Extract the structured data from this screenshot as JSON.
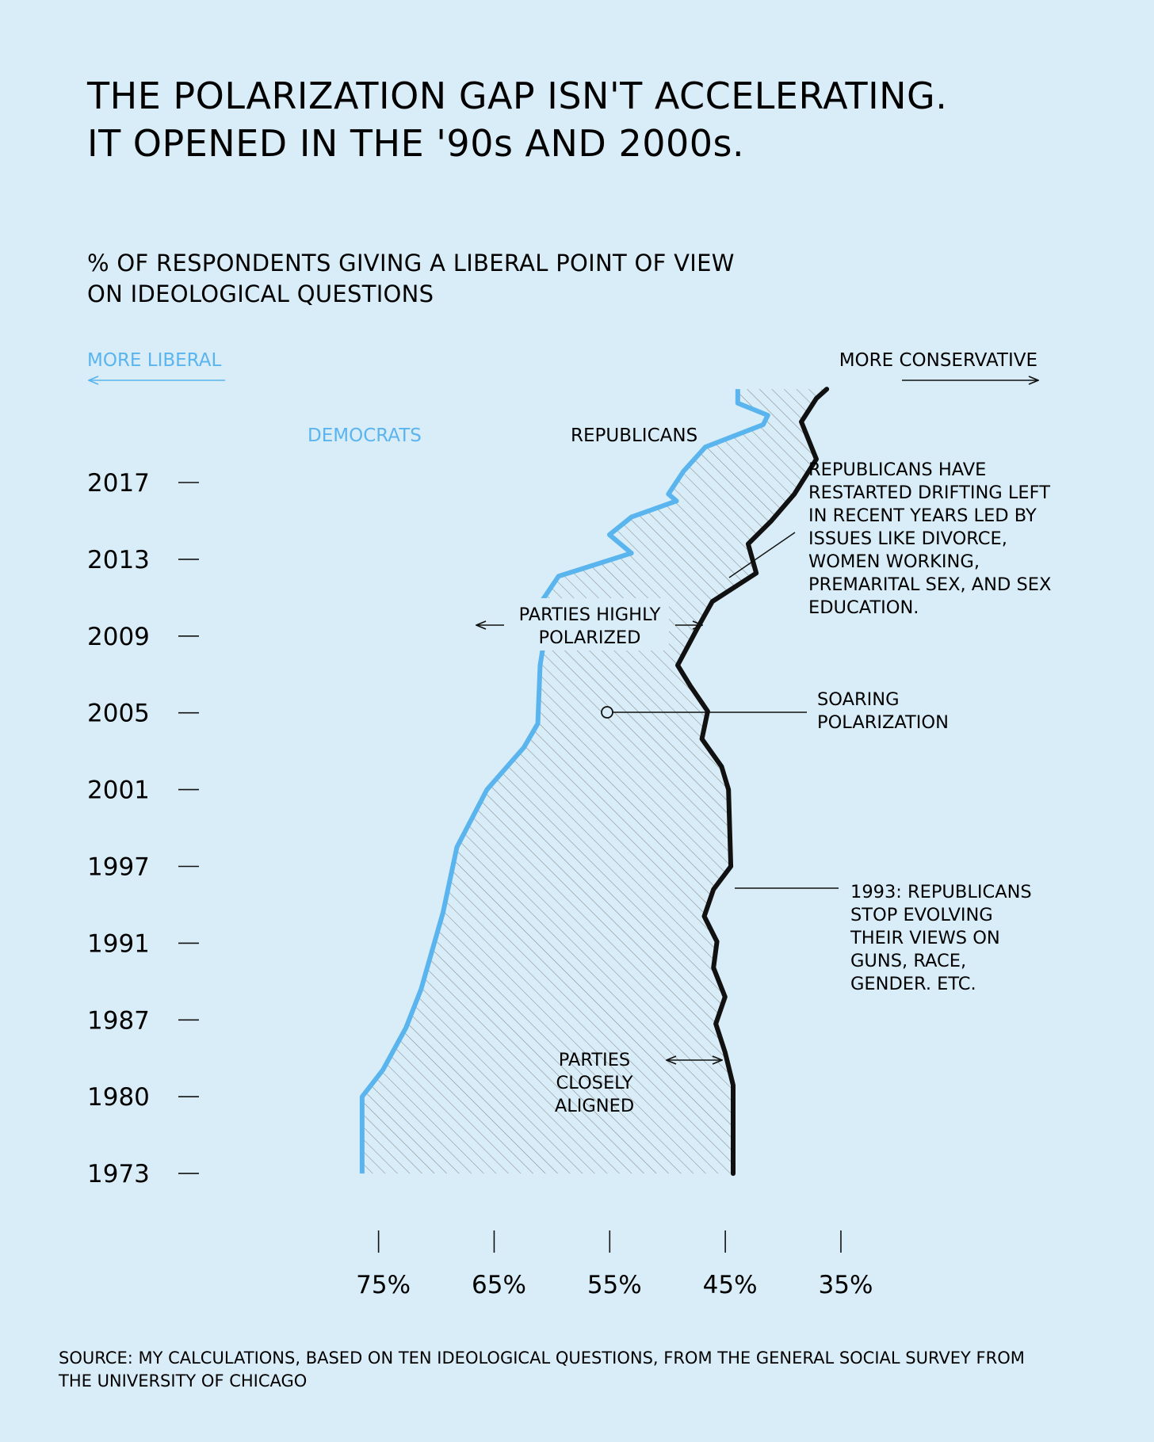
{
  "header": {
    "title_lines": [
      "THE POLARIZATION GAP ISN'T ACCELERATING.",
      "IT OPENED IN THE '90s AND 2000s."
    ],
    "subtitle_lines": [
      "% OF RESPONDENTS GIVING A LIBERAL POINT OF VIEW",
      "ON IDEOLOGICAL QUESTIONS"
    ]
  },
  "direction": {
    "left_label": "MORE LIBERAL",
    "right_label": "MORE CONSERVATIVE"
  },
  "annotations": {
    "republicans_drift": [
      "REPUBLICANS HAVE",
      "RESTARTED DRIFTING LEFT",
      "IN RECENT YEARS LED BY",
      "ISSUES LIKE DIVORCE,",
      "WOMEN WORKING,",
      "PREMARITAL SEX, AND SEX",
      "EDUCATION."
    ],
    "highly_polarized": [
      "PARTIES HIGHLY",
      "POLARIZED"
    ],
    "soaring": [
      "SOARING",
      "POLARIZATION"
    ],
    "republicans_1993": [
      "1993: REPUBLICANS",
      "STOP EVOLVING",
      "THEIR VIEWS ON",
      "GUNS, RACE,",
      "GENDER. ETC."
    ],
    "closely_aligned": [
      "PARTIES",
      "CLOSELY",
      "ALIGNED"
    ]
  },
  "source_lines": [
    "SOURCE: MY CALCULATIONS, BASED ON TEN IDEOLOGICAL QUESTIONS, FROM THE GENERAL SOCIAL SURVEY FROM",
    "THE UNIVERSITY OF CHICAGO"
  ],
  "colors": {
    "background": "#d9edf8",
    "democrats": "#5ab4ee",
    "republicans": "#111111",
    "hatch": "#8a8a8a"
  },
  "chart_data": {
    "type": "line",
    "orientation": "vertical-time",
    "y_tick_labels": [
      "2017",
      "2013",
      "2009",
      "2005",
      "2001",
      "1997",
      "1991",
      "1987",
      "1980",
      "1973"
    ],
    "x_tick_values": [
      75,
      65,
      55,
      45,
      35
    ],
    "x_tick_labels": [
      "75%",
      "65%",
      "55%",
      "45%",
      "35%"
    ],
    "xlim": [
      79.5,
      31.5
    ],
    "x_reversed": true,
    "series": [
      {
        "name": "DEMOCRATS",
        "color": "#5ab4ee",
        "points": [
          {
            "y": 10,
            "x": 43.1
          },
          {
            "y": 9.85,
            "x": 43.1
          },
          {
            "y": 9.72,
            "x": 40.5
          },
          {
            "y": 9.62,
            "x": 40.9
          },
          {
            "y": 9.38,
            "x": 45.9
          },
          {
            "y": 9.12,
            "x": 47.8
          },
          {
            "y": 8.85,
            "x": 49.1
          },
          {
            "y": 8.76,
            "x": 48.4
          },
          {
            "y": 8.55,
            "x": 52.3
          },
          {
            "y": 8.32,
            "x": 54.2
          },
          {
            "y": 8.08,
            "x": 52.3
          },
          {
            "y": 7.78,
            "x": 58.6
          },
          {
            "y": 7.2,
            "x": 61.2
          },
          {
            "y": 7.08,
            "x": 60.5
          },
          {
            "y": 6.9,
            "x": 59.9
          },
          {
            "y": 6.62,
            "x": 60.2
          },
          {
            "y": 5.86,
            "x": 60.4
          },
          {
            "y": 5.55,
            "x": 61.6
          },
          {
            "y": 5.0,
            "x": 64.8
          },
          {
            "y": 4.25,
            "x": 67.4
          },
          {
            "y": 3.4,
            "x": 68.6
          },
          {
            "y": 2.4,
            "x": 70.5
          },
          {
            "y": 1.9,
            "x": 71.8
          },
          {
            "y": 1.35,
            "x": 73.8
          },
          {
            "y": 1.0,
            "x": 75.6
          },
          {
            "y": 0.0,
            "x": 75.6
          }
        ]
      },
      {
        "name": "REPUBLICANS",
        "color": "#111111",
        "points": [
          {
            "y": 10,
            "x": 35.4
          },
          {
            "y": 9.9,
            "x": 36.3
          },
          {
            "y": 9.65,
            "x": 37.6
          },
          {
            "y": 9.25,
            "x": 36.3
          },
          {
            "y": 8.85,
            "x": 38.2
          },
          {
            "y": 8.5,
            "x": 40.2
          },
          {
            "y": 8.2,
            "x": 42.2
          },
          {
            "y": 7.82,
            "x": 41.5
          },
          {
            "y": 7.45,
            "x": 45.3
          },
          {
            "y": 7.1,
            "x": 46.6
          },
          {
            "y": 6.62,
            "x": 48.3
          },
          {
            "y": 6.35,
            "x": 47.2
          },
          {
            "y": 6.02,
            "x": 45.7
          },
          {
            "y": 5.66,
            "x": 46.2
          },
          {
            "y": 5.3,
            "x": 44.5
          },
          {
            "y": 5.0,
            "x": 43.9
          },
          {
            "y": 4.0,
            "x": 43.7
          },
          {
            "y": 3.7,
            "x": 45.2
          },
          {
            "y": 3.35,
            "x": 46.0
          },
          {
            "y": 3.02,
            "x": 44.9
          },
          {
            "y": 2.68,
            "x": 45.2
          },
          {
            "y": 2.3,
            "x": 44.2
          },
          {
            "y": 1.95,
            "x": 45.0
          },
          {
            "y": 1.58,
            "x": 44.2
          },
          {
            "y": 1.15,
            "x": 43.5
          },
          {
            "y": 0.0,
            "x": 43.5
          }
        ]
      }
    ]
  }
}
